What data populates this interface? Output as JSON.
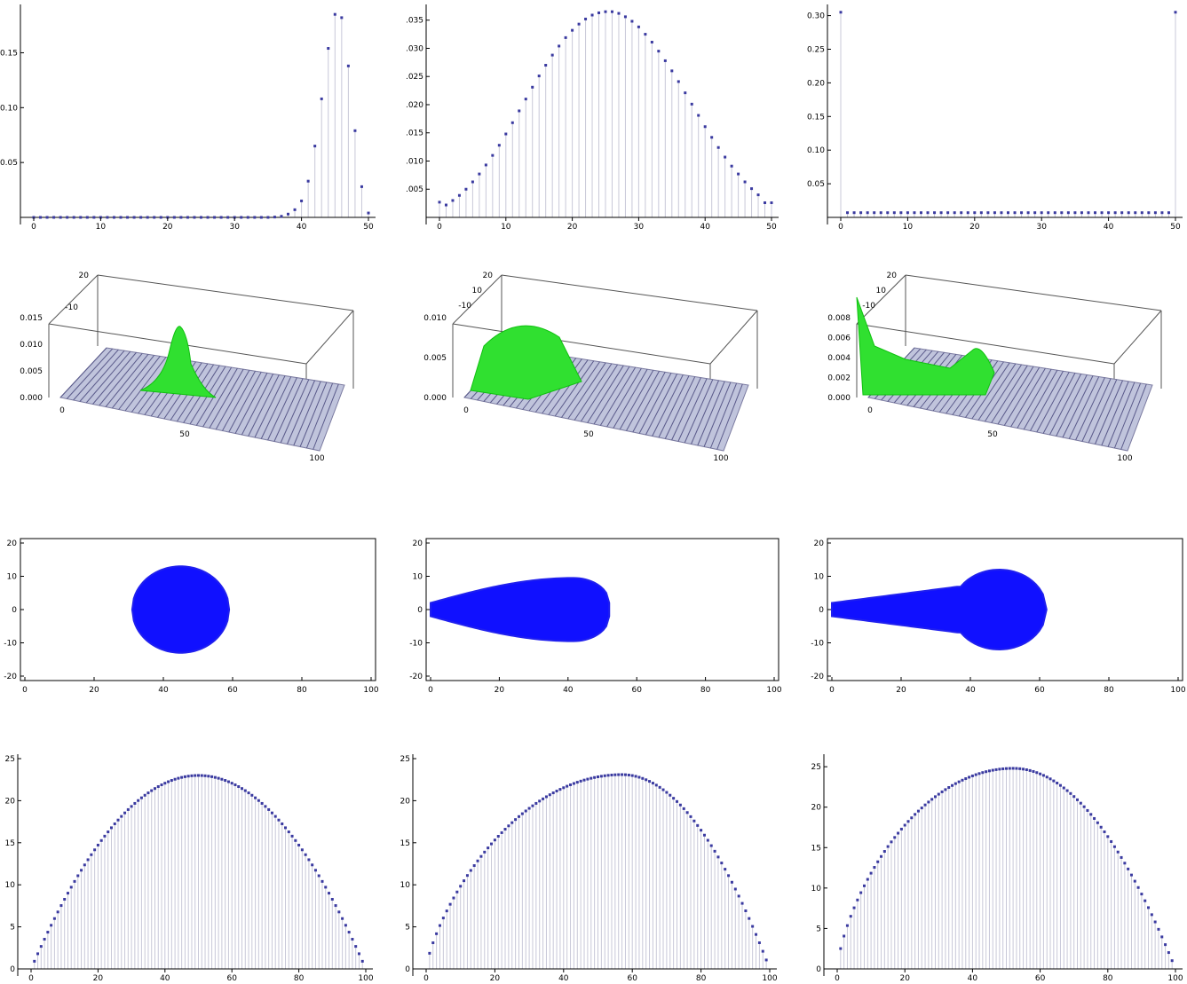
{
  "chart_data": [
    {
      "id": "r1c1",
      "type": "scatter",
      "style": "stem",
      "xlim": [
        0,
        50
      ],
      "ylim": [
        0,
        0.19
      ],
      "x_ticks": [
        0,
        10,
        20,
        30,
        40,
        50
      ],
      "y_ticks": [
        0.05,
        0.1,
        0.15
      ],
      "y_tick_labels": [
        "0.05",
        "0.10",
        "0.15"
      ],
      "x": [
        0,
        1,
        2,
        3,
        4,
        5,
        6,
        7,
        8,
        9,
        10,
        11,
        12,
        13,
        14,
        15,
        16,
        17,
        18,
        19,
        20,
        21,
        22,
        23,
        24,
        25,
        26,
        27,
        28,
        29,
        30,
        31,
        32,
        33,
        34,
        35,
        36,
        37,
        38,
        39,
        40,
        41,
        42,
        43,
        44,
        45,
        46,
        47,
        48,
        49,
        50
      ],
      "y": [
        0,
        0,
        0,
        0,
        0,
        0,
        0,
        0,
        0,
        0,
        0,
        0,
        0,
        0,
        0,
        0,
        0,
        0,
        0,
        0,
        0,
        0,
        0,
        0,
        0,
        0,
        0,
        0,
        0,
        0,
        0,
        0,
        0,
        0,
        0,
        0,
        0.0003,
        0.001,
        0.003,
        0.007,
        0.015,
        0.033,
        0.065,
        0.108,
        0.154,
        0.185,
        0.182,
        0.138,
        0.079,
        0.028,
        0.004
      ]
    },
    {
      "id": "r1c2",
      "type": "scatter",
      "style": "stem",
      "xlim": [
        0,
        50
      ],
      "ylim": [
        0,
        0.037
      ],
      "x_ticks": [
        0,
        10,
        20,
        30,
        40,
        50
      ],
      "y_ticks": [
        0.005,
        0.01,
        0.015,
        0.02,
        0.025,
        0.03,
        0.035
      ],
      "y_tick_labels": [
        ".005",
        ".010",
        ".015",
        ".020",
        ".025",
        ".030",
        ".035"
      ],
      "x": [
        0,
        1,
        2,
        3,
        4,
        5,
        6,
        7,
        8,
        9,
        10,
        11,
        12,
        13,
        14,
        15,
        16,
        17,
        18,
        19,
        20,
        21,
        22,
        23,
        24,
        25,
        26,
        27,
        28,
        29,
        30,
        31,
        32,
        33,
        34,
        35,
        36,
        37,
        38,
        39,
        40,
        41,
        42,
        43,
        44,
        45,
        46,
        47,
        48,
        49,
        50
      ],
      "y": [
        0.0027,
        0.0022,
        0.003,
        0.0039,
        0.005,
        0.0063,
        0.0077,
        0.0093,
        0.011,
        0.0128,
        0.0148,
        0.0168,
        0.0189,
        0.021,
        0.0231,
        0.0251,
        0.027,
        0.0288,
        0.0304,
        0.0319,
        0.0332,
        0.0343,
        0.0352,
        0.0359,
        0.0363,
        0.0365,
        0.0365,
        0.0362,
        0.0356,
        0.0348,
        0.0338,
        0.0325,
        0.0311,
        0.0295,
        0.0278,
        0.026,
        0.0241,
        0.0221,
        0.0201,
        0.0181,
        0.0161,
        0.0142,
        0.0124,
        0.0107,
        0.0091,
        0.0077,
        0.0063,
        0.0051,
        0.004,
        0.0026,
        0.0026
      ]
    },
    {
      "id": "r1c3",
      "type": "scatter",
      "style": "stem",
      "xlim": [
        0,
        50
      ],
      "ylim": [
        0,
        0.31
      ],
      "x_ticks": [
        0,
        10,
        20,
        30,
        40,
        50
      ],
      "y_ticks": [
        0.05,
        0.1,
        0.15,
        0.2,
        0.25,
        0.3
      ],
      "y_tick_labels": [
        "0.05",
        "0.10",
        "0.15",
        "0.20",
        "0.25",
        "0.30"
      ],
      "x": [
        0,
        1,
        2,
        3,
        4,
        5,
        6,
        7,
        8,
        9,
        10,
        11,
        12,
        13,
        14,
        15,
        16,
        17,
        18,
        19,
        20,
        21,
        22,
        23,
        24,
        25,
        26,
        27,
        28,
        29,
        30,
        31,
        32,
        33,
        34,
        35,
        36,
        37,
        38,
        39,
        40,
        41,
        42,
        43,
        44,
        45,
        46,
        47,
        48,
        49,
        50
      ],
      "y": [
        0.305,
        0.007,
        0.007,
        0.007,
        0.007,
        0.007,
        0.007,
        0.007,
        0.007,
        0.007,
        0.007,
        0.007,
        0.007,
        0.007,
        0.007,
        0.007,
        0.007,
        0.007,
        0.007,
        0.007,
        0.007,
        0.007,
        0.007,
        0.007,
        0.007,
        0.007,
        0.007,
        0.007,
        0.007,
        0.007,
        0.007,
        0.007,
        0.007,
        0.007,
        0.007,
        0.007,
        0.007,
        0.007,
        0.007,
        0.007,
        0.007,
        0.007,
        0.007,
        0.007,
        0.007,
        0.007,
        0.007,
        0.007,
        0.007,
        0.007,
        0.305
      ]
    },
    {
      "id": "r2c1",
      "type": "surface3d",
      "x_ticks": [
        0,
        50,
        100
      ],
      "y_ticks": [
        20,
        -10
      ],
      "z_ticks": [
        "0.000",
        "0.005",
        "0.010",
        "0.015"
      ],
      "peak_x": 45,
      "peak_z": 0.015
    },
    {
      "id": "r2c2",
      "type": "surface3d",
      "x_ticks": [
        0,
        50,
        100
      ],
      "y_ticks": [
        20,
        10,
        -10
      ],
      "z_ticks": [
        "0.000",
        "0.005",
        "0.010"
      ],
      "peak_x": 25,
      "peak_z": 0.01
    },
    {
      "id": "r2c3",
      "type": "surface3d",
      "x_ticks": [
        0,
        50,
        100
      ],
      "y_ticks": [
        20,
        10,
        -10
      ],
      "z_ticks": [
        "0.000",
        "0.002",
        "0.004",
        "0.006",
        "0.008"
      ],
      "peak_x": 50,
      "peak_z": 0.004
    },
    {
      "id": "r3c1",
      "type": "scatter",
      "style": "dense-region",
      "xlim": [
        0,
        100
      ],
      "ylim": [
        -20,
        20
      ],
      "x_ticks": [
        0,
        20,
        40,
        60,
        80,
        100
      ],
      "y_ticks": [
        20,
        10,
        0,
        -10,
        -20
      ],
      "region": {
        "shape": "disk",
        "x_start": 31,
        "x_end": 59,
        "half_width_start": 13,
        "half_width_end": 13
      }
    },
    {
      "id": "r3c2",
      "type": "scatter",
      "style": "dense-region",
      "xlim": [
        0,
        100
      ],
      "ylim": [
        -20,
        20
      ],
      "x_ticks": [
        0,
        20,
        40,
        60,
        80,
        100
      ],
      "y_ticks": [
        20,
        10,
        0,
        -10,
        -20
      ],
      "region": {
        "shape": "teardrop",
        "x_start": 0,
        "x_end": 52,
        "half_width_start": 2,
        "half_width_end": 9.5
      }
    },
    {
      "id": "r3c3",
      "type": "scatter",
      "style": "dense-region",
      "xlim": [
        0,
        100
      ],
      "ylim": [
        -20,
        20
      ],
      "x_ticks": [
        0,
        20,
        40,
        60,
        80,
        100
      ],
      "y_ticks": [
        20,
        10,
        0,
        -10,
        -20
      ],
      "region": {
        "shape": "bulb",
        "x_start": 0,
        "x_end": 62,
        "half_width_start": 2,
        "half_width_end": 12
      }
    },
    {
      "id": "r4c1",
      "type": "scatter",
      "style": "stem",
      "xlim": [
        0,
        100
      ],
      "ylim": [
        0,
        25
      ],
      "x_ticks": [
        0,
        20,
        40,
        60,
        80,
        100
      ],
      "y_ticks": [
        0,
        5,
        10,
        15,
        20,
        25
      ],
      "profile": {
        "peak_x": 50,
        "peak_y": 23,
        "end_y": 0.5,
        "skew": 1.0,
        "x_step": 1
      }
    },
    {
      "id": "r4c2",
      "type": "scatter",
      "style": "stem",
      "xlim": [
        0,
        100
      ],
      "ylim": [
        0,
        25
      ],
      "x_ticks": [
        0,
        20,
        40,
        60,
        80,
        100
      ],
      "y_ticks": [
        0,
        5,
        10,
        15,
        20,
        25
      ],
      "profile": {
        "peak_x": 57,
        "peak_y": 23.1,
        "end_y": 0.3,
        "skew": 0.75,
        "x_step": 1
      }
    },
    {
      "id": "r4c3",
      "type": "scatter",
      "style": "stem",
      "xlim": [
        0,
        100
      ],
      "ylim": [
        0,
        26
      ],
      "x_ticks": [
        0,
        20,
        40,
        60,
        80,
        100
      ],
      "y_ticks": [
        0,
        5,
        10,
        15,
        20,
        25
      ],
      "profile": {
        "peak_x": 52,
        "peak_y": 24.8,
        "end_y": 0.3,
        "skew": 0.7,
        "x_step": 1
      }
    }
  ]
}
